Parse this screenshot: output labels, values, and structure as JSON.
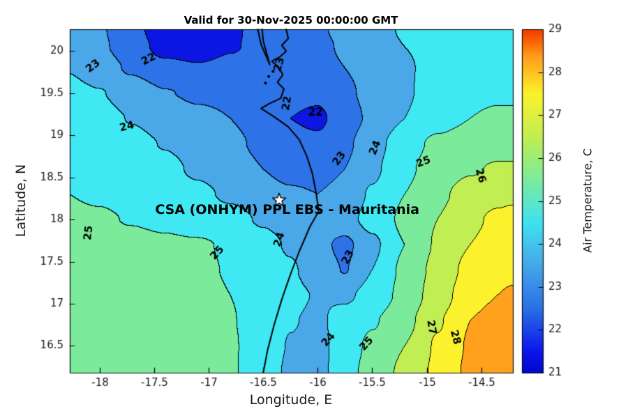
{
  "title": "Valid for 30-Nov-2025 00:00:00 GMT",
  "axes": {
    "xlabel": "Longitude, E",
    "ylabel": "Latitude, N"
  },
  "colorbar": {
    "label": "Air Temperature, C",
    "min": 21,
    "max": 29,
    "ticks": [
      21,
      22,
      23,
      24,
      25,
      26,
      27,
      28,
      29
    ],
    "tick_labels": [
      "21",
      "22",
      "23",
      "24",
      "25",
      "26",
      "27",
      "28",
      "29"
    ],
    "gradient_stops": [
      [
        0,
        "#0007cd"
      ],
      [
        0.0625,
        "#0b17ea"
      ],
      [
        0.1875,
        "#2a70e6"
      ],
      [
        0.3125,
        "#46a7ea"
      ],
      [
        0.4375,
        "#3fe2f0"
      ],
      [
        0.5625,
        "#7cec9c"
      ],
      [
        0.6875,
        "#c1ee50"
      ],
      [
        0.8125,
        "#fbf22d"
      ],
      [
        0.92,
        "#ff9e1b"
      ],
      [
        0.975,
        "#fb5500"
      ],
      [
        1,
        "#f23b00"
      ]
    ]
  },
  "annotation": {
    "text": "CSA (ONHYM) PPL EBS  - Mauritania",
    "star_lon": -16.354,
    "star_lat": 18.23,
    "text_lon": -16.28,
    "text_lat": 18.12
  },
  "chart_data": {
    "type": "filled_contour",
    "title": "Valid for 30-Nov-2025 00:00:00 GMT",
    "xlabel": "Longitude, E",
    "ylabel": "Latitude, N",
    "x_range": [
      -18.275,
      -14.21
    ],
    "y_range": [
      16.18,
      20.26
    ],
    "x_ticks": {
      "values": [
        -18,
        -17.5,
        -17,
        -16.5,
        -16,
        -15.5,
        -15,
        -14.5
      ],
      "labels": [
        "-18",
        "-17.5",
        "-17",
        "-16.5",
        "-16",
        "-15.5",
        "-15",
        "-14.5"
      ]
    },
    "y_ticks": {
      "values": [
        16.5,
        17,
        17.5,
        18,
        18.5,
        19,
        19.5,
        20
      ],
      "labels": [
        "16.5",
        "17",
        "17.5",
        "18",
        "18.5",
        "19",
        "19.5",
        "20"
      ]
    },
    "levels": [
      21,
      22,
      23,
      24,
      25,
      26,
      27,
      28,
      29
    ],
    "band_colors": [
      "#0b16e3",
      "#2d72e6",
      "#4aa7e8",
      "#3fe8f2",
      "#7beb9b",
      "#c1ee53",
      "#fbf22d",
      "#ffa11c"
    ],
    "grid_x": [
      -18.275,
      -18.0,
      -17.7,
      -17.4,
      -17.1,
      -16.8,
      -16.5,
      -16.25,
      -16.0,
      -15.75,
      -15.5,
      -15.2,
      -14.9,
      -14.6,
      -14.35,
      -14.21
    ],
    "grid_y": [
      16.18,
      16.5,
      16.8,
      17.1,
      17.4,
      17.7,
      18.0,
      18.3,
      18.6,
      18.9,
      19.2,
      19.5,
      19.8,
      20.05,
      20.26
    ],
    "grid_t": [
      [
        25.3,
        25.3,
        25.3,
        25.3,
        25.3,
        25.1,
        24.45,
        23.85,
        23.65,
        24.6,
        25.4,
        26.2,
        27.2,
        28.2,
        28.6,
        28.7
      ],
      [
        25.35,
        25.35,
        25.35,
        25.35,
        25.3,
        25.1,
        24.5,
        23.95,
        23.7,
        24.5,
        25.2,
        26.0,
        27.1,
        28.1,
        28.5,
        28.6
      ],
      [
        25.4,
        25.4,
        25.4,
        25.35,
        25.3,
        25.05,
        24.55,
        24.05,
        23.85,
        24.35,
        24.9,
        25.7,
        26.9,
        28.0,
        28.4,
        28.5
      ],
      [
        25.45,
        25.45,
        25.4,
        25.35,
        25.25,
        25.0,
        24.6,
        24.2,
        23.95,
        23.85,
        24.3,
        25.3,
        26.5,
        27.6,
        28.0,
        28.1
      ],
      [
        25.4,
        25.4,
        25.35,
        25.3,
        25.15,
        24.95,
        24.5,
        24.1,
        23.6,
        22.95,
        24.0,
        25.2,
        26.3,
        27.3,
        27.7,
        27.8
      ],
      [
        25.3,
        25.3,
        25.25,
        25.15,
        25.1,
        24.9,
        24.3,
        23.9,
        23.3,
        22.75,
        23.8,
        25.0,
        26.1,
        27.0,
        27.4,
        27.5
      ],
      [
        25.15,
        25.1,
        24.95,
        24.8,
        24.55,
        24.3,
        23.9,
        23.6,
        23.5,
        23.7,
        24.3,
        25.2,
        26.0,
        26.8,
        27.2,
        27.3
      ],
      [
        25.0,
        24.9,
        24.75,
        24.5,
        24.2,
        23.85,
        23.45,
        23.15,
        23.0,
        23.4,
        24.1,
        25.0,
        25.8,
        26.4,
        26.7,
        26.8
      ],
      [
        24.85,
        24.75,
        24.55,
        24.25,
        23.85,
        23.45,
        23.0,
        22.6,
        22.5,
        23.0,
        23.8,
        24.8,
        25.5,
        25.9,
        26.1,
        26.1
      ],
      [
        24.7,
        24.55,
        24.3,
        23.95,
        23.6,
        23.2,
        22.8,
        22.35,
        22.2,
        22.8,
        23.6,
        24.6,
        25.2,
        25.5,
        25.6,
        25.6
      ],
      [
        24.5,
        24.35,
        23.95,
        23.55,
        23.2,
        23.0,
        22.6,
        22.0,
        21.8,
        22.5,
        23.2,
        24.0,
        24.6,
        25.0,
        25.2,
        25.2
      ],
      [
        24.3,
        24.05,
        23.55,
        23.05,
        22.85,
        22.8,
        22.6,
        22.3,
        22.2,
        22.8,
        23.3,
        23.9,
        24.4,
        24.7,
        24.8,
        24.8
      ],
      [
        23.95,
        23.45,
        22.85,
        22.3,
        22.1,
        22.3,
        22.5,
        22.6,
        22.7,
        23.0,
        23.4,
        23.9,
        24.3,
        24.5,
        24.5,
        24.5
      ],
      [
        23.6,
        23.15,
        22.5,
        21.6,
        21.4,
        21.9,
        22.3,
        22.6,
        22.8,
        23.1,
        23.5,
        24.0,
        24.3,
        24.4,
        24.4,
        24.4
      ],
      [
        23.5,
        23.1,
        22.3,
        21.4,
        21.2,
        21.8,
        22.4,
        22.8,
        22.9,
        23.2,
        23.6,
        24.1,
        24.3,
        24.4,
        24.3,
        24.3
      ]
    ],
    "contour_labels": [
      {
        "v": "23",
        "lon": -18.06,
        "lat": 19.82,
        "rot": -38
      },
      {
        "v": "22",
        "lon": -17.55,
        "lat": 19.9,
        "rot": -28
      },
      {
        "v": "23",
        "lon": -16.35,
        "lat": 19.84,
        "rot": -75
      },
      {
        "v": "22",
        "lon": -16.28,
        "lat": 19.38,
        "rot": -80
      },
      {
        "v": "24",
        "lon": -17.75,
        "lat": 19.1,
        "rot": -14
      },
      {
        "v": "22",
        "lon": -16.02,
        "lat": 19.27,
        "rot": 0
      },
      {
        "v": "23",
        "lon": -15.8,
        "lat": 18.72,
        "rot": -55
      },
      {
        "v": "24",
        "lon": -15.47,
        "lat": 18.85,
        "rot": -68
      },
      {
        "v": "25",
        "lon": -15.03,
        "lat": 18.68,
        "rot": -20
      },
      {
        "v": "26",
        "lon": -14.51,
        "lat": 18.52,
        "rot": 75
      },
      {
        "v": "25",
        "lon": -18.1,
        "lat": 17.84,
        "rot": -84
      },
      {
        "v": "25",
        "lon": -16.92,
        "lat": 17.6,
        "rot": -48
      },
      {
        "v": "24",
        "lon": -16.35,
        "lat": 17.76,
        "rot": -72
      },
      {
        "v": "23",
        "lon": -15.72,
        "lat": 17.55,
        "rot": -62
      },
      {
        "v": "24",
        "lon": -15.9,
        "lat": 16.57,
        "rot": -50
      },
      {
        "v": "25",
        "lon": -15.55,
        "lat": 16.52,
        "rot": -48
      },
      {
        "v": "27",
        "lon": -14.96,
        "lat": 16.72,
        "rot": 80
      },
      {
        "v": "28",
        "lon": -14.74,
        "lat": 16.6,
        "rot": 75
      }
    ],
    "coastline": [
      [
        -16.5,
        16.18
      ],
      [
        -16.46,
        16.45
      ],
      [
        -16.4,
        16.75
      ],
      [
        -16.33,
        17.05
      ],
      [
        -16.25,
        17.35
      ],
      [
        -16.17,
        17.62
      ],
      [
        -16.07,
        17.92
      ],
      [
        -15.99,
        18.1
      ],
      [
        -16.02,
        18.35
      ],
      [
        -16.05,
        18.55
      ],
      [
        -16.1,
        18.75
      ],
      [
        -16.17,
        18.95
      ],
      [
        -16.27,
        19.1
      ],
      [
        -16.4,
        19.22
      ],
      [
        -16.52,
        19.32
      ],
      [
        -16.44,
        19.38
      ],
      [
        -16.34,
        19.44
      ],
      [
        -16.31,
        19.55
      ],
      [
        -16.37,
        19.63
      ],
      [
        -16.32,
        19.72
      ],
      [
        -16.36,
        19.81
      ],
      [
        -16.42,
        19.88
      ],
      [
        -16.35,
        19.93
      ],
      [
        -16.29,
        20.0
      ],
      [
        -16.33,
        20.07
      ],
      [
        -16.27,
        20.15
      ],
      [
        -16.29,
        20.26
      ]
    ],
    "peninsula": [
      [
        -16.55,
        20.26
      ],
      [
        -16.52,
        20.08
      ],
      [
        -16.47,
        19.93
      ],
      [
        -16.44,
        19.84
      ],
      [
        -16.47,
        19.98
      ],
      [
        -16.5,
        20.12
      ],
      [
        -16.51,
        20.26
      ]
    ],
    "islands": [
      [
        -16.45,
        19.7
      ],
      [
        -16.41,
        19.76
      ],
      [
        -16.48,
        19.62
      ]
    ]
  }
}
